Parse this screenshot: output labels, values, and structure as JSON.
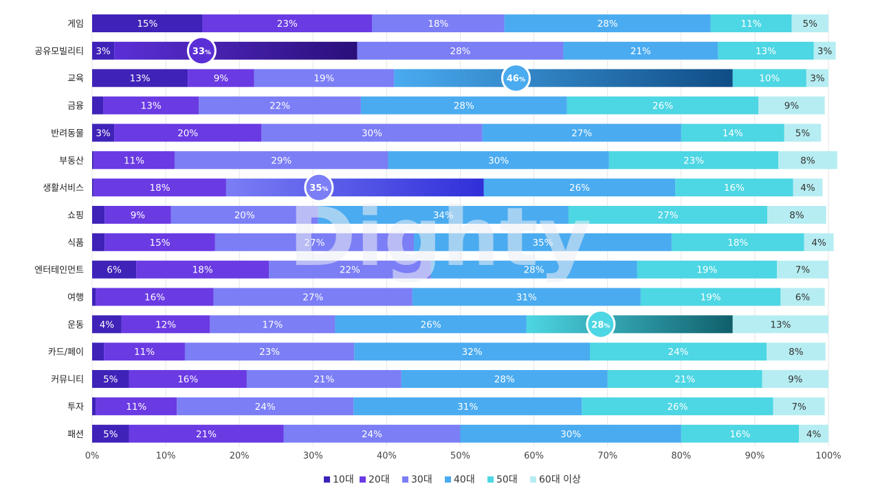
{
  "chart_data": {
    "type": "bar",
    "orientation": "horizontal",
    "stacked": true,
    "categories": [
      "게임",
      "공유모빌리티",
      "교육",
      "금융",
      "반려동물",
      "부동산",
      "생활서비스",
      "쇼핑",
      "식품",
      "엔터테인먼트",
      "여행",
      "운동",
      "카드/페이",
      "커뮤니티",
      "투자",
      "패션"
    ],
    "series": [
      {
        "name": "10대",
        "color": "#3f22b8",
        "values": [
          15,
          3,
          13,
          1.5,
          3,
          0.2,
          0.2,
          1.7,
          1.7,
          6,
          0.5,
          4,
          1.6,
          5,
          0.5,
          5
        ]
      },
      {
        "name": "20대",
        "color": "#6a3ae3",
        "values": [
          23,
          33,
          9,
          13,
          20,
          11,
          18,
          9,
          15,
          18,
          16,
          12,
          11,
          16,
          11,
          21
        ]
      },
      {
        "name": "30대",
        "color": "#7b7ef5",
        "values": [
          18,
          28,
          19,
          22,
          30,
          29,
          35,
          20,
          27,
          22,
          27,
          17,
          23,
          21,
          24,
          24
        ]
      },
      {
        "name": "40대",
        "color": "#4aabf0",
        "values": [
          28,
          21,
          46,
          28,
          27,
          30,
          26,
          34,
          35,
          28,
          31,
          26,
          32,
          28,
          31,
          30
        ]
      },
      {
        "name": "50대",
        "color": "#4dd6e3",
        "values": [
          11,
          13,
          10,
          26,
          14,
          23,
          16,
          27,
          18,
          19,
          19,
          28,
          24,
          21,
          26,
          16
        ]
      },
      {
        "name": "60대 이상",
        "color": "#b6edf2",
        "values": [
          5,
          3,
          3,
          9,
          5,
          8,
          4,
          8,
          4,
          7,
          6,
          13,
          8,
          9,
          7,
          4
        ]
      }
    ],
    "labels": [
      [
        "15%",
        "23%",
        "18%",
        "28%",
        "11%",
        "5%"
      ],
      [
        "3%",
        "33%",
        "28%",
        "21%",
        "13%",
        "3%"
      ],
      [
        "13%",
        "9%",
        "19%",
        "46%",
        "10%",
        "3%"
      ],
      [
        "",
        "13%",
        "22%",
        "28%",
        "26%",
        "9%"
      ],
      [
        "3%",
        "20%",
        "30%",
        "27%",
        "14%",
        "5%"
      ],
      [
        "",
        "11%",
        "29%",
        "30%",
        "23%",
        "8%"
      ],
      [
        "",
        "18%",
        "35%",
        "26%",
        "16%",
        "4%"
      ],
      [
        "",
        "9%",
        "20%",
        "34%",
        "27%",
        "8%"
      ],
      [
        "",
        "15%",
        "27%",
        "35%",
        "18%",
        "4%"
      ],
      [
        "6%",
        "18%",
        "22%",
        "28%",
        "19%",
        "7%"
      ],
      [
        "",
        "16%",
        "27%",
        "31%",
        "19%",
        "6%"
      ],
      [
        "4%",
        "12%",
        "17%",
        "26%",
        "28%",
        "13%"
      ],
      [
        "",
        "11%",
        "23%",
        "32%",
        "24%",
        "8%"
      ],
      [
        "5%",
        "16%",
        "21%",
        "28%",
        "21%",
        "9%"
      ],
      [
        "",
        "11%",
        "24%",
        "31%",
        "26%",
        "7%"
      ],
      [
        "5%",
        "21%",
        "24%",
        "30%",
        "16%",
        "4%"
      ]
    ],
    "highlights": [
      {
        "category": "공유모빌리티",
        "series": "20대",
        "label": "33",
        "unit": "%",
        "color": "#5b2fd6",
        "dark": "#2a0f7a"
      },
      {
        "category": "교육",
        "series": "40대",
        "label": "46",
        "unit": "%",
        "color": "#4aabf0",
        "dark": "#0f4d86"
      },
      {
        "category": "생활서비스",
        "series": "30대",
        "label": "35",
        "unit": "%",
        "color": "#7b7ef5",
        "dark": "#2f2fd9"
      },
      {
        "category": "운동",
        "series": "50대",
        "label": "28",
        "unit": "%",
        "color": "#4dd6e3",
        "dark": "#0f5f6b"
      }
    ],
    "xaxis": {
      "ticks": [
        0,
        10,
        20,
        30,
        40,
        50,
        60,
        70,
        80,
        90,
        100
      ],
      "tick_suffix": "%"
    },
    "xlim": [
      0,
      100
    ],
    "grid": true,
    "legend_position": "bottom",
    "watermark": "Dighty"
  }
}
